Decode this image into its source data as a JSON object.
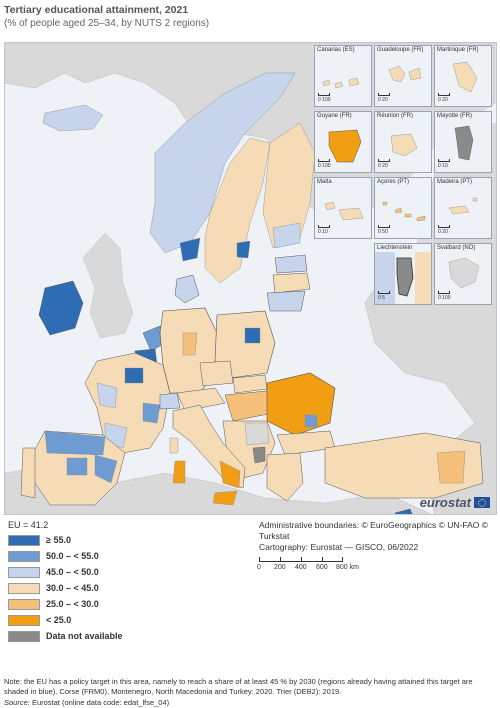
{
  "title": "Tertiary educational attainment, 2021",
  "subtitle": "(% of people aged 25–34, by NUTS 2 regions)",
  "colors": {
    "c1": "#2e6db3",
    "c2": "#6f9bd3",
    "c3": "#c7d5ec",
    "c4": "#f6dcb6",
    "c5": "#f5c07a",
    "c6": "#f29e12",
    "na": "#8a8a8a",
    "sea": "#eef1f6",
    "nonEU": "#d9d9d9"
  },
  "insets": [
    {
      "label": "Canarias (ES)",
      "scale": "100"
    },
    {
      "label": "Guadeloupe (FR)",
      "scale": "20"
    },
    {
      "label": "Martinique (FR)",
      "scale": "20"
    },
    {
      "label": "Guyane (FR)",
      "scale": "100"
    },
    {
      "label": "Réunion (FR)",
      "scale": "20"
    },
    {
      "label": "Mayotte (FR)",
      "scale": "10"
    },
    {
      "label": "Malta",
      "scale": "10"
    },
    {
      "label": "Açores (PT)",
      "scale": "50"
    },
    {
      "label": "Madeira (PT)",
      "scale": "20"
    },
    {
      "label": "Liechtenstein",
      "scale": "5"
    },
    {
      "label": "Svalbard (NO)",
      "scale": "100"
    }
  ],
  "logo_text": "eurostat",
  "legend": {
    "total": "EU = 41.2",
    "items": [
      {
        "label": "≥ 55.0",
        "color": "#2e6db3"
      },
      {
        "label": "50.0 – < 55.0",
        "color": "#6f9bd3"
      },
      {
        "label": "45.0 – < 50.0",
        "color": "#c7d5ec"
      },
      {
        "label": "30.0 – < 45.0",
        "color": "#f6dcb6"
      },
      {
        "label": "25.0 – < 30.0",
        "color": "#f5c07a"
      },
      {
        "label": "< 25.0",
        "color": "#f29e12"
      },
      {
        "label": "Data not available",
        "color": "#8a8a8a"
      }
    ]
  },
  "credits": {
    "line1": "Administrative boundaries: © EuroGeographics © UN-FAO © Turkstat",
    "line2": "Cartography: Eurostat — GISCO, 06/2022"
  },
  "scalebar": {
    "labels": [
      "0",
      "200",
      "400",
      "600",
      "800 km"
    ]
  },
  "note": "Note: the EU has a policy target in this area, namely to reach a share of at least 45 % by 2030 (regions already having attained this target are shaded in blue). Corse (FRM0), Montenegro, North Macedonia and Turkey: 2020. Trier (DEB2): 2019.",
  "source": {
    "prefix": "Source:",
    "text": "Eurostat (online data code: edat_lfse_04)"
  }
}
